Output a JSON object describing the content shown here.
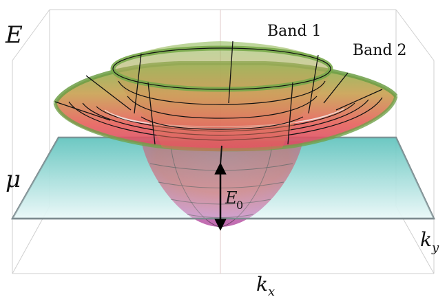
{
  "labels": {
    "energy_axis": "E",
    "chem_potential": "μ",
    "band1": "Band 1",
    "band2": "Band 2",
    "gap_label": "E",
    "gap_label_sub": "0",
    "kx_base": "k",
    "kx_sub": "x",
    "ky_base": "k",
    "ky_sub": "y"
  },
  "colors": {
    "plane_top": "#6cc9c4",
    "plane_bottom": "#e6f6f6",
    "plane_edge": "#7d8b8f",
    "box_lines": "#c9c9c9",
    "band_green": "#7fb04c",
    "band_red": "#e6424a",
    "band_magenta": "#b44aa6",
    "band_orange": "#e07a3a",
    "mesh_lines": "#111111"
  }
}
